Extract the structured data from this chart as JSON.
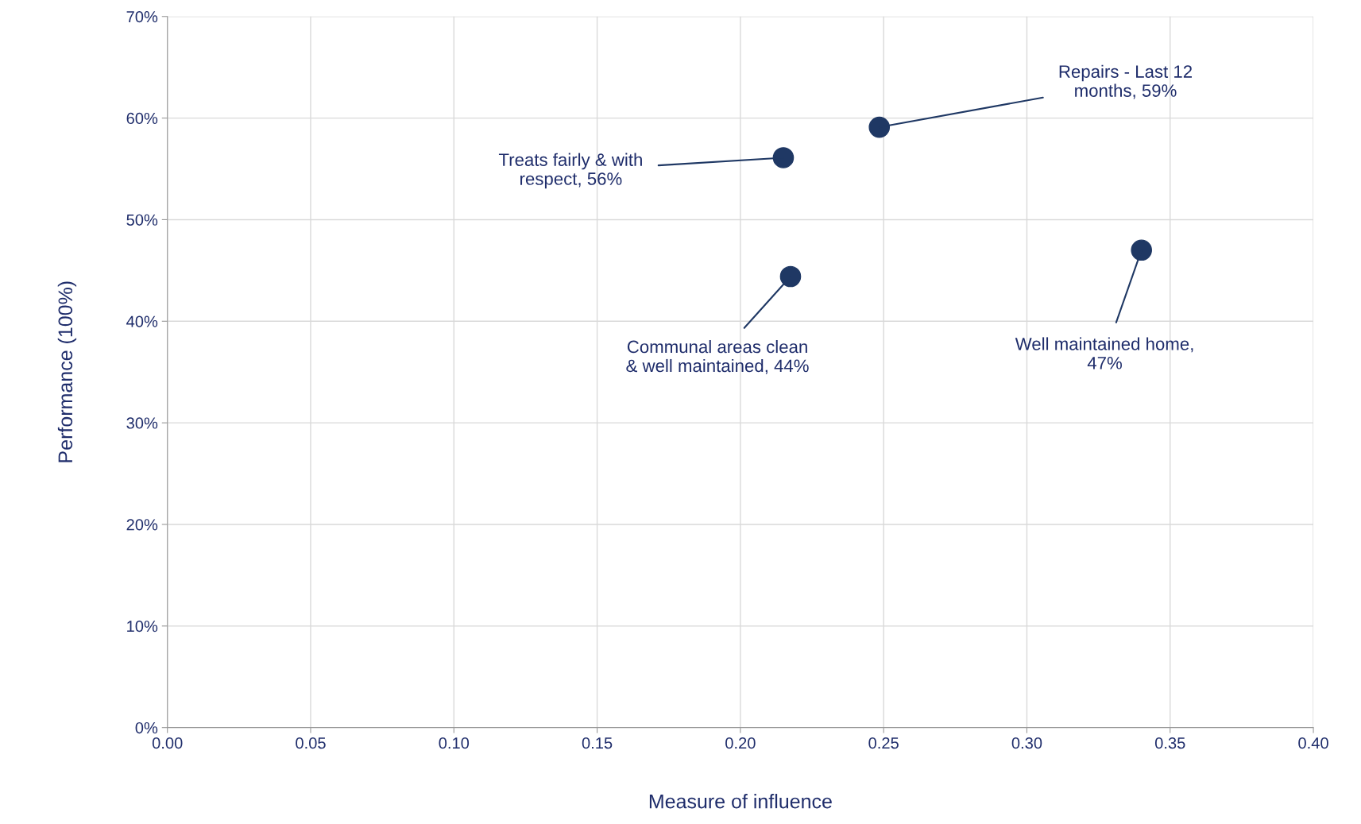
{
  "chart_data": {
    "type": "scatter",
    "xlabel": "Measure of influence",
    "ylabel": "Performance (100%)",
    "x": [
      0.215,
      0.2485,
      0.2175,
      0.34
    ],
    "series": [
      {
        "color": "#1f3864",
        "values": [
          56.1,
          59.1,
          44.4,
          47.0
        ]
      }
    ],
    "xlim": [
      0,
      0.4
    ],
    "xticks": [
      {
        "value": 0,
        "label": "0.00"
      },
      {
        "value": 0.05,
        "label": "0.05"
      },
      {
        "value": 0.1,
        "label": "0.10"
      },
      {
        "value": 0.15,
        "label": "0.15"
      },
      {
        "value": 0.2,
        "label": "0.20"
      },
      {
        "value": 0.25,
        "label": "0.25"
      },
      {
        "value": 0.3,
        "label": "0.30"
      },
      {
        "value": 0.35,
        "label": "0.35"
      },
      {
        "value": 0.4,
        "label": "0.40"
      }
    ],
    "ylim": [
      0,
      70
    ],
    "yticks": [
      {
        "value": 0,
        "label": "0%"
      },
      {
        "value": 10,
        "label": "10%"
      },
      {
        "value": 20,
        "label": "20%"
      },
      {
        "value": 30,
        "label": "30%"
      },
      {
        "value": 40,
        "label": "40%"
      },
      {
        "value": 50,
        "label": "50%"
      },
      {
        "value": 60,
        "label": "60%"
      },
      {
        "value": 70,
        "label": "70%"
      }
    ],
    "grid": true,
    "marker": "circle",
    "legend": false,
    "annotations": [
      {
        "text": "Treats fairly & with\nrespect, 56%",
        "x": 0.215,
        "y": 56.1
      },
      {
        "text": "Repairs - Last 12\nmonths, 59%",
        "x": 0.2485,
        "y": 59.1
      },
      {
        "text": "Communal areas clean\n& well maintained, 44%",
        "x": 0.2175,
        "y": 44.4
      },
      {
        "text": "Well maintained home,\n47%",
        "x": 0.34,
        "y": 47.0
      }
    ]
  }
}
